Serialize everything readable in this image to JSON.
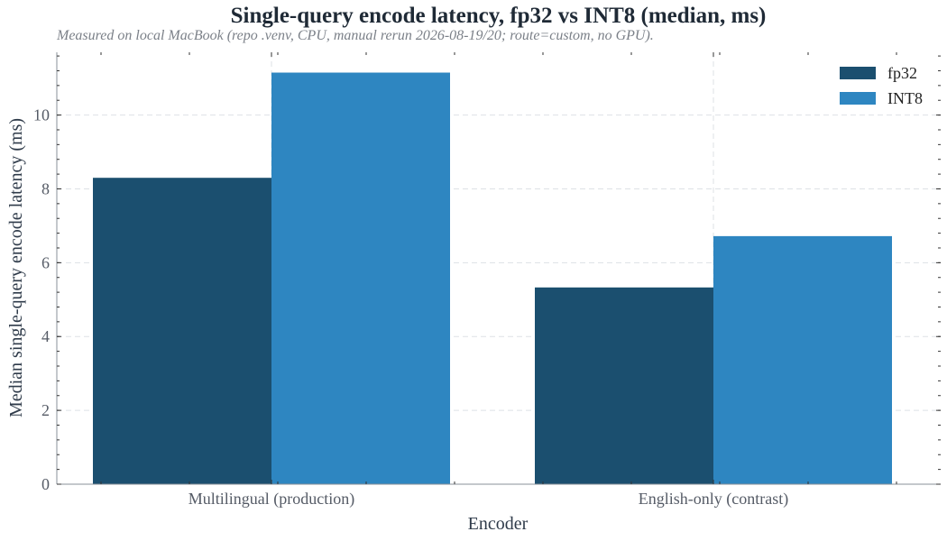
{
  "chart_data": {
    "type": "bar",
    "title": "Single-query encode latency, fp32 vs INT8 (median, ms)",
    "subtitle": "Measured on local MacBook (repo .venv, CPU, manual rerun 2026-08-19/20; route=custom, no GPU).",
    "xlabel": "Encoder",
    "ylabel": "Median single-query encode latency (ms)",
    "categories": [
      "Multilingual (production)",
      "English-only (contrast)"
    ],
    "series": [
      {
        "name": "fp32",
        "values": [
          8.3,
          5.33
        ],
        "color": "#1b4f6f"
      },
      {
        "name": "INT8",
        "values": [
          11.15,
          6.72
        ],
        "color": "#2e86c1"
      }
    ],
    "ylim": [
      0,
      11.7
    ],
    "yticks": [
      0,
      2,
      4,
      6,
      8,
      10
    ],
    "ytick_labels": [
      "0",
      "2",
      "4",
      "6",
      "8",
      "10"
    ],
    "grid": true,
    "legend_position": "top-right"
  }
}
